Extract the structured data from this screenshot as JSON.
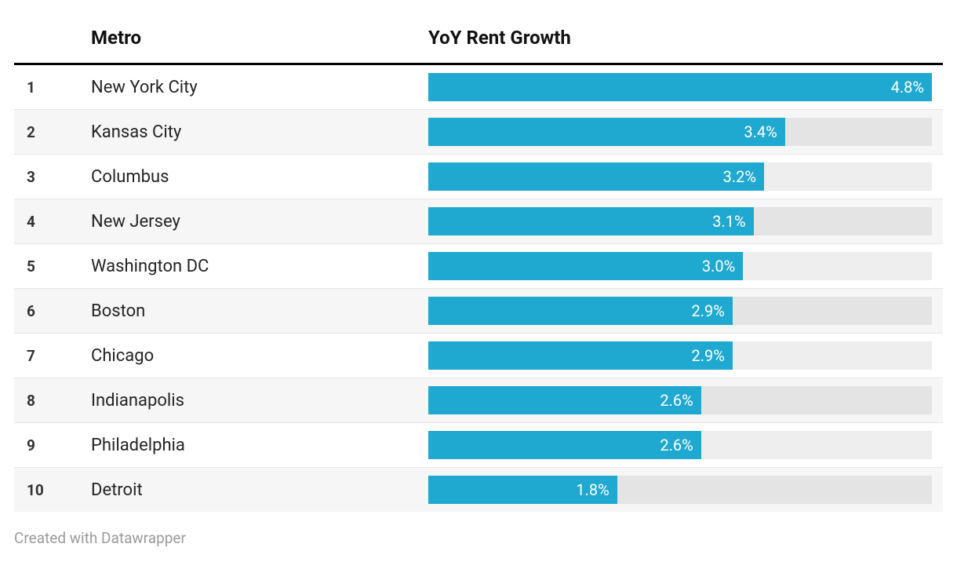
{
  "chart": {
    "type": "table-with-bars",
    "background_color": "#ffffff",
    "header_border_color": "#000000",
    "row_separator_color": "#e6e6e6",
    "alt_row_background": "#f6f6f6",
    "bar_track_color": "#e4e4e4",
    "bar_fill_color": "#1fa8d0",
    "bar_label_color": "#ffffff",
    "text_color": "#333333",
    "header_fontsize": 24,
    "body_fontsize": 22,
    "rank_fontsize": 19,
    "bar_label_fontsize": 20,
    "footer_fontsize": 19,
    "footer_color": "#9a9a9a",
    "bar_max_value": 4.8,
    "columns": {
      "rank": "",
      "metro": "Metro",
      "growth": "YoY Rent Growth"
    },
    "rows": [
      {
        "rank": "1",
        "metro": "New York City",
        "value": 4.8,
        "label": "4.8%"
      },
      {
        "rank": "2",
        "metro": "Kansas City",
        "value": 3.4,
        "label": "3.4%"
      },
      {
        "rank": "3",
        "metro": "Columbus",
        "value": 3.2,
        "label": "3.2%"
      },
      {
        "rank": "4",
        "metro": "New Jersey",
        "value": 3.1,
        "label": "3.1%"
      },
      {
        "rank": "5",
        "metro": "Washington DC",
        "value": 3.0,
        "label": "3.0%"
      },
      {
        "rank": "6",
        "metro": "Boston",
        "value": 2.9,
        "label": "2.9%"
      },
      {
        "rank": "7",
        "metro": "Chicago",
        "value": 2.9,
        "label": "2.9%"
      },
      {
        "rank": "8",
        "metro": "Indianapolis",
        "value": 2.6,
        "label": "2.6%"
      },
      {
        "rank": "9",
        "metro": "Philadelphia",
        "value": 2.6,
        "label": "2.6%"
      },
      {
        "rank": "10",
        "metro": "Detroit",
        "value": 1.8,
        "label": "1.8%"
      }
    ],
    "footer": "Created with Datawrapper"
  }
}
